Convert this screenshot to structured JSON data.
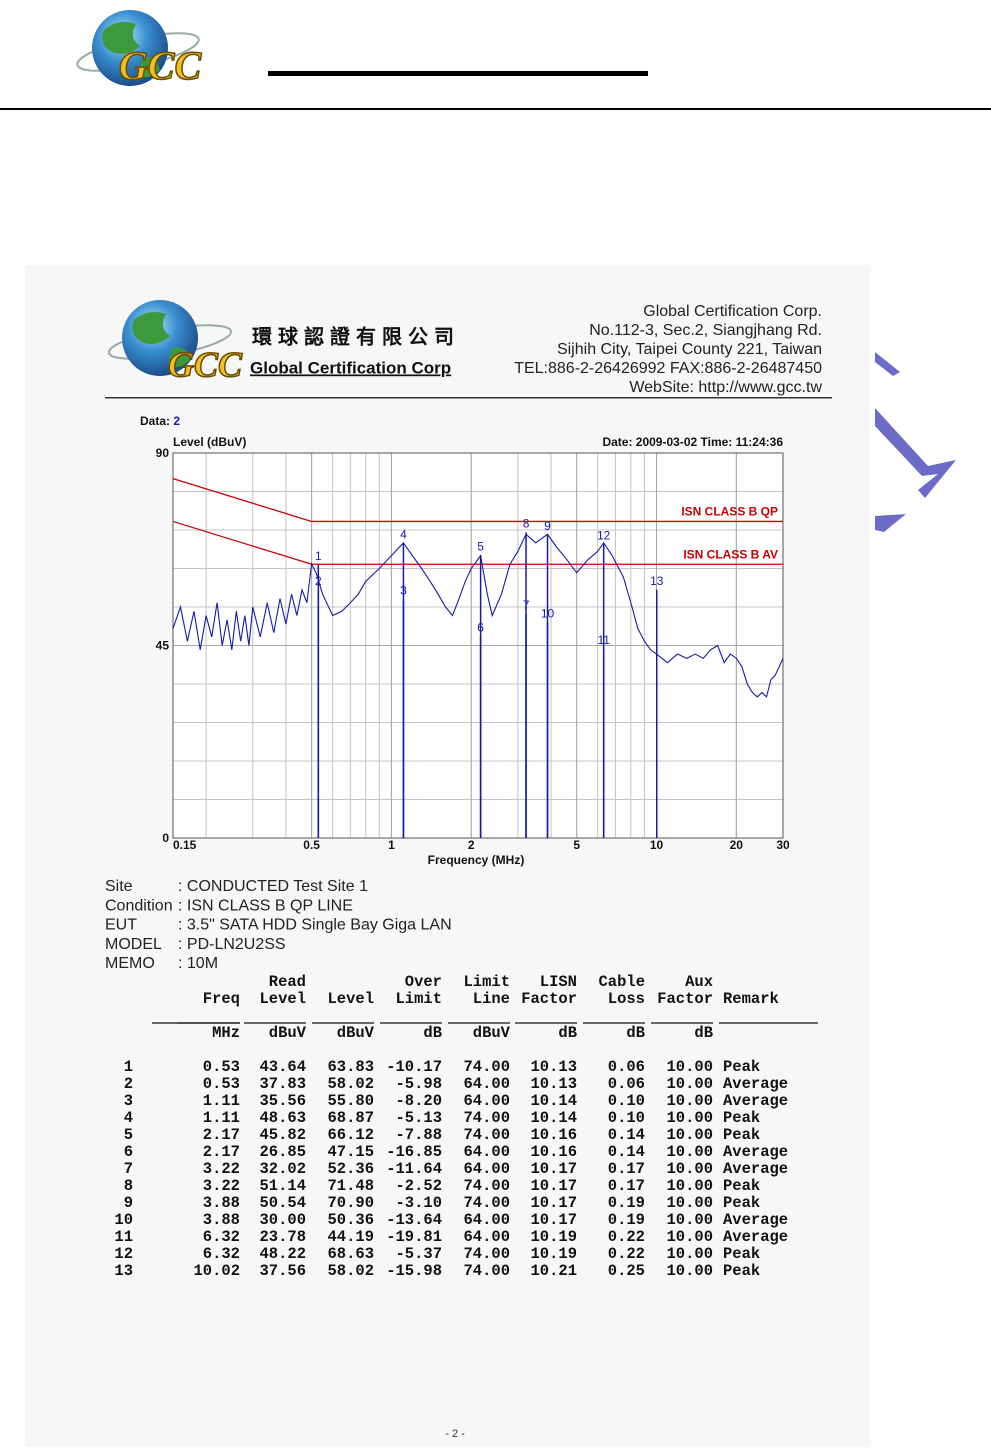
{
  "header": {
    "logo_text": "GCC"
  },
  "letterhead": {
    "logo_text": "GCC",
    "chinese_name": "環球認證有限公司",
    "english_name": "Global Certification Corp",
    "address_lines": [
      "Global Certification Corp.",
      "No.112-3, Sec.2, Siangjhang Rd.",
      "Sijhih City, Taipei County 221, Taiwan",
      "TEL:886-2-26426992 FAX:886-2-26487450",
      "WebSite: http://www.gcc.tw"
    ]
  },
  "chart_data": {
    "type": "line",
    "data_label": "Data:",
    "data_number": "2",
    "date": "Date: 2009-03-02  Time: 11:24:36",
    "y_label": "Level (dBuV)",
    "x_label": "Frequency (MHz)",
    "xscale": "log",
    "xlim": [
      0.15,
      30
    ],
    "xticks": [
      0.15,
      0.5,
      1,
      2,
      5,
      10,
      20,
      30
    ],
    "ylim": [
      0,
      90
    ],
    "yticks": [
      0,
      45,
      90
    ],
    "grid": true,
    "series": [
      {
        "name": "ISN CLASS B QP",
        "color": "#cc0000",
        "x": [
          0.15,
          0.5,
          30
        ],
        "values": [
          84,
          74,
          74
        ]
      },
      {
        "name": "ISN CLASS B AV",
        "color": "#cc0000",
        "x": [
          0.15,
          0.5,
          30
        ],
        "values": [
          74,
          64,
          64
        ]
      },
      {
        "color": "#1a1aa8",
        "x": [
          0.15,
          0.16,
          0.17,
          0.18,
          0.19,
          0.2,
          0.21,
          0.22,
          0.23,
          0.24,
          0.25,
          0.26,
          0.27,
          0.28,
          0.29,
          0.3,
          0.32,
          0.34,
          0.36,
          0.38,
          0.4,
          0.42,
          0.44,
          0.46,
          0.48,
          0.5,
          0.52,
          0.55,
          0.6,
          0.65,
          0.7,
          0.75,
          0.8,
          0.9,
          1.0,
          1.11,
          1.2,
          1.3,
          1.4,
          1.5,
          1.6,
          1.7,
          1.8,
          1.9,
          2.0,
          2.17,
          2.3,
          2.4,
          2.6,
          2.8,
          3.0,
          3.22,
          3.5,
          3.88,
          4.2,
          4.6,
          5.0,
          5.5,
          6.0,
          6.32,
          6.8,
          7.5,
          8.0,
          8.5,
          9.0,
          9.5,
          10.0,
          11,
          12,
          13,
          14,
          15,
          16,
          17,
          18,
          19,
          20,
          21,
          22,
          23,
          24,
          25,
          26,
          27,
          28,
          29,
          30
        ],
        "values": [
          49,
          54,
          46,
          53,
          44,
          52,
          47,
          55,
          45,
          51,
          44,
          53,
          46,
          52,
          45,
          54,
          47,
          55,
          48,
          56,
          50,
          57,
          52,
          58,
          55,
          64,
          62,
          57,
          52,
          53,
          55,
          57,
          60,
          63,
          66,
          69,
          66,
          63,
          60,
          57,
          54,
          52,
          56,
          60,
          63,
          66,
          57,
          52,
          57,
          64,
          67,
          71,
          69,
          71,
          68,
          65,
          62,
          65,
          67,
          69,
          66,
          61,
          55,
          49,
          46,
          44,
          43,
          41,
          43,
          42,
          43,
          42,
          44,
          45,
          41,
          43,
          42,
          40,
          36,
          34,
          33,
          34,
          33,
          37,
          38,
          40,
          42
        ]
      }
    ],
    "markers": {
      "color": "#1a1aa8",
      "labels": [
        "1",
        "2",
        "3",
        "4",
        "5",
        "6",
        "7",
        "8",
        "9",
        "10",
        "11",
        "12",
        "13"
      ],
      "x": [
        0.53,
        0.53,
        1.11,
        1.11,
        2.17,
        2.17,
        3.22,
        3.22,
        3.88,
        3.88,
        6.32,
        6.32,
        10.02
      ],
      "values": [
        63.83,
        58.02,
        55.8,
        68.87,
        66.12,
        47.15,
        52.36,
        71.48,
        70.9,
        50.36,
        44.19,
        68.63,
        58.02
      ]
    }
  },
  "info": {
    "rows": [
      [
        "Site",
        ": CONDUCTED Test Site 1"
      ],
      [
        "Condition",
        ": ISN CLASS B QP LINE"
      ],
      [
        "EUT",
        ": 3.5\" SATA HDD Single Bay Giga LAN"
      ],
      [
        "MODEL",
        ": PD-LN2U2SS"
      ],
      [
        "MEMO",
        ": 10M"
      ]
    ]
  },
  "table": {
    "columns": [
      {
        "label": [
          "Freq"
        ],
        "unit": "MHz"
      },
      {
        "label": [
          "Read",
          "Level"
        ],
        "unit": "dBuV"
      },
      {
        "label": [
          "Level"
        ],
        "unit": "dBuV"
      },
      {
        "label": [
          "Over",
          "Limit"
        ],
        "unit": "dB"
      },
      {
        "label": [
          "Limit",
          "Line"
        ],
        "unit": "dBuV"
      },
      {
        "label": [
          "LISN",
          "Factor"
        ],
        "unit": "dB"
      },
      {
        "label": [
          "Cable",
          "Loss"
        ],
        "unit": "dB"
      },
      {
        "label": [
          "Aux",
          "Factor"
        ],
        "unit": "dB"
      },
      {
        "label": [
          "Remark"
        ]
      }
    ],
    "rows": [
      [
        "1",
        "0.53",
        "43.64",
        "63.83",
        "-10.17",
        "74.00",
        "10.13",
        "0.06",
        "10.00",
        "Peak"
      ],
      [
        "2",
        "0.53",
        "37.83",
        "58.02",
        "-5.98",
        "64.00",
        "10.13",
        "0.06",
        "10.00",
        "Average"
      ],
      [
        "3",
        "1.11",
        "35.56",
        "55.80",
        "-8.20",
        "64.00",
        "10.14",
        "0.10",
        "10.00",
        "Average"
      ],
      [
        "4",
        "1.11",
        "48.63",
        "68.87",
        "-5.13",
        "74.00",
        "10.14",
        "0.10",
        "10.00",
        "Peak"
      ],
      [
        "5",
        "2.17",
        "45.82",
        "66.12",
        "-7.88",
        "74.00",
        "10.16",
        "0.14",
        "10.00",
        "Peak"
      ],
      [
        "6",
        "2.17",
        "26.85",
        "47.15",
        "-16.85",
        "64.00",
        "10.16",
        "0.14",
        "10.00",
        "Average"
      ],
      [
        "7",
        "3.22",
        "32.02",
        "52.36",
        "-11.64",
        "64.00",
        "10.17",
        "0.17",
        "10.00",
        "Average"
      ],
      [
        "8",
        "3.22",
        "51.14",
        "71.48",
        "-2.52",
        "74.00",
        "10.17",
        "0.17",
        "10.00",
        "Peak"
      ],
      [
        "9",
        "3.88",
        "50.54",
        "70.90",
        "-3.10",
        "74.00",
        "10.17",
        "0.19",
        "10.00",
        "Peak"
      ],
      [
        "10",
        "3.88",
        "30.00",
        "50.36",
        "-13.64",
        "64.00",
        "10.17",
        "0.19",
        "10.00",
        "Average"
      ],
      [
        "11",
        "6.32",
        "23.78",
        "44.19",
        "-19.81",
        "64.00",
        "10.19",
        "0.22",
        "10.00",
        "Average"
      ],
      [
        "12",
        "6.32",
        "48.22",
        "68.63",
        "-5.37",
        "74.00",
        "10.19",
        "0.22",
        "10.00",
        "Peak"
      ],
      [
        "13",
        "10.02",
        "37.56",
        "58.02",
        "-15.98",
        "74.00",
        "10.21",
        "0.25",
        "10.00",
        "Peak"
      ]
    ]
  },
  "footer": {
    "page": "- 2 -"
  }
}
